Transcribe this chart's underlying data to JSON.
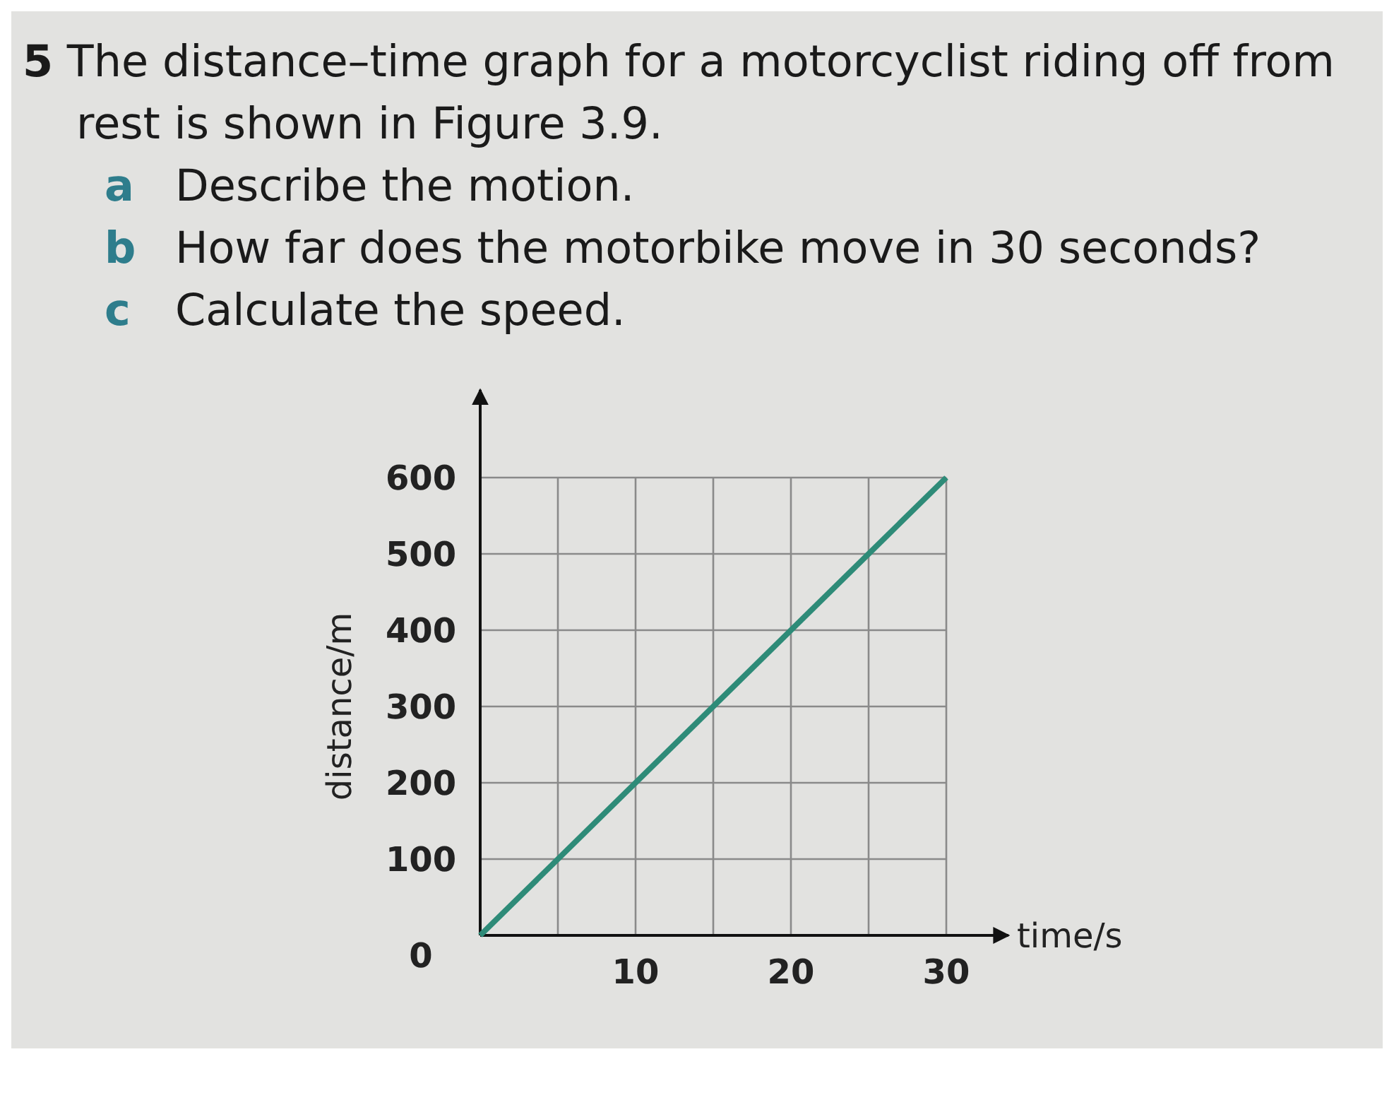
{
  "chart_data": {
    "type": "line",
    "title": "5 The distance–time graph for a motorcyclist riding off from rest is shown in Figure 3.9.",
    "annotations": [
      "a Describe the motion.",
      "b How far does the motorbike move in 30 seconds?",
      "c Calculate the speed."
    ],
    "xlabel": "time/s",
    "ylabel": "distance/m",
    "x": [
      0,
      30
    ],
    "series": [
      {
        "color": "#2e8b78",
        "values": [
          0,
          600
        ]
      }
    ],
    "xlim": [
      0,
      34
    ],
    "ylim": [
      0,
      715
    ],
    "xticks": [
      {
        "value": 5,
        "label": null
      },
      10,
      {
        "value": 15,
        "label": null
      },
      20,
      {
        "value": 25,
        "label": null
      },
      30
    ],
    "yticks": [
      0,
      100,
      200,
      300,
      400,
      500,
      600
    ],
    "grid": true,
    "marker": "none",
    "line_style": "solid"
  }
}
